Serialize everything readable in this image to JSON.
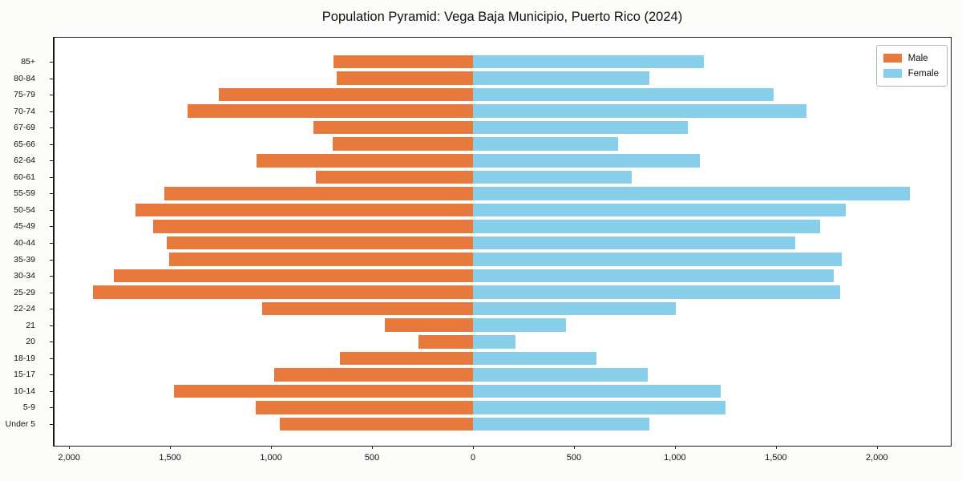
{
  "title": "Population Pyramid: Vega Baja Municipio, Puerto Rico (2024)",
  "legend": {
    "male_label": "Male",
    "female_label": "Female"
  },
  "colors": {
    "male": "#e8793c",
    "female": "#87ceeb",
    "axis": "#1a1a1a",
    "background": "#fcfcfa",
    "plot_background": "#ffffff"
  },
  "chart_data": {
    "type": "bar",
    "subtype": "population-pyramid",
    "orientation": "horizontal",
    "title": "Population Pyramid: Vega Baja Municipio, Puerto Rico (2024)",
    "xlabel": "",
    "ylabel": "",
    "grid": false,
    "zero_line": true,
    "legend_position": "upper right",
    "categories": [
      "85+",
      "80-84",
      "75-79",
      "70-74",
      "67-69",
      "65-66",
      "62-64",
      "60-61",
      "55-59",
      "50-54",
      "45-49",
      "40-44",
      "35-39",
      "30-34",
      "25-29",
      "22-24",
      "21",
      "20",
      "18-19",
      "15-17",
      "10-14",
      "5-9",
      "Under 5"
    ],
    "series": [
      {
        "name": "Male",
        "side": "left",
        "color": "#e8793c",
        "values": [
          690,
          675,
          1260,
          1415,
          790,
          695,
          1070,
          780,
          1530,
          1670,
          1585,
          1515,
          1505,
          1780,
          1880,
          1045,
          435,
          270,
          660,
          985,
          1480,
          1075,
          955
        ]
      },
      {
        "name": "Female",
        "side": "right",
        "color": "#87ceeb",
        "values": [
          1145,
          875,
          1490,
          1650,
          1065,
          720,
          1125,
          785,
          2165,
          1845,
          1720,
          1595,
          1825,
          1785,
          1820,
          1005,
          460,
          210,
          610,
          865,
          1225,
          1250,
          875
        ]
      }
    ],
    "x_tick_values": [
      -2000,
      -1500,
      -1000,
      -500,
      0,
      500,
      1000,
      1500,
      2000
    ],
    "x_tick_labels": [
      "2,000",
      "1,500",
      "1,000",
      "500",
      "0",
      "500",
      "1,000",
      "1,500",
      "2,000"
    ],
    "xlim": [
      -2080,
      2370
    ]
  }
}
